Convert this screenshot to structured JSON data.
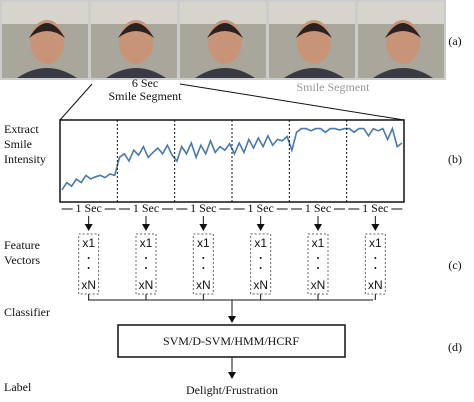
{
  "photo_strip": {
    "segment_duration": "6 Sec",
    "segment_label": "Smile Segment",
    "faded_label": "Smile Segment"
  },
  "panel_labels": [
    "(a)",
    "(b)",
    "(c)",
    "(d)"
  ],
  "row_labels": {
    "extract": "Extract\nSmile\nIntensity",
    "features": "Feature\nVectors",
    "classifier": "Classifier",
    "label": "Label"
  },
  "windows": [
    "1 Sec",
    "1 Sec",
    "1 Sec",
    "1 Sec",
    "1 Sec",
    "1 Sec"
  ],
  "vectors": [
    {
      "first": "x1",
      "last": "xN"
    },
    {
      "first": "x1",
      "last": "xN"
    },
    {
      "first": "x1",
      "last": "xN"
    },
    {
      "first": "x1",
      "last": "xN"
    },
    {
      "first": "x1",
      "last": "xN"
    },
    {
      "first": "x1",
      "last": "xN"
    }
  ],
  "classifier": "SVM/D-SVM/HMM/HCRF",
  "output": "Delight/Frustration",
  "smile_intensity": [
    0.1,
    0.2,
    0.15,
    0.25,
    0.2,
    0.3,
    0.25,
    0.28,
    0.3,
    0.27,
    0.32,
    0.3,
    0.55,
    0.6,
    0.5,
    0.65,
    0.58,
    0.7,
    0.55,
    0.62,
    0.68,
    0.6,
    0.72,
    0.58,
    0.5,
    0.7,
    0.6,
    0.75,
    0.55,
    0.72,
    0.6,
    0.78,
    0.62,
    0.7,
    0.65,
    0.74,
    0.6,
    0.75,
    0.62,
    0.8,
    0.68,
    0.82,
    0.7,
    0.85,
    0.72,
    0.8,
    0.78,
    0.84,
    0.65,
    0.9,
    0.95,
    0.95,
    0.92,
    0.95,
    0.95,
    0.9,
    0.95,
    0.95,
    0.93,
    0.95,
    0.95,
    0.9,
    0.95,
    0.95,
    0.85,
    0.95,
    0.92,
    0.95,
    0.8,
    0.95,
    0.7,
    0.75
  ]
}
